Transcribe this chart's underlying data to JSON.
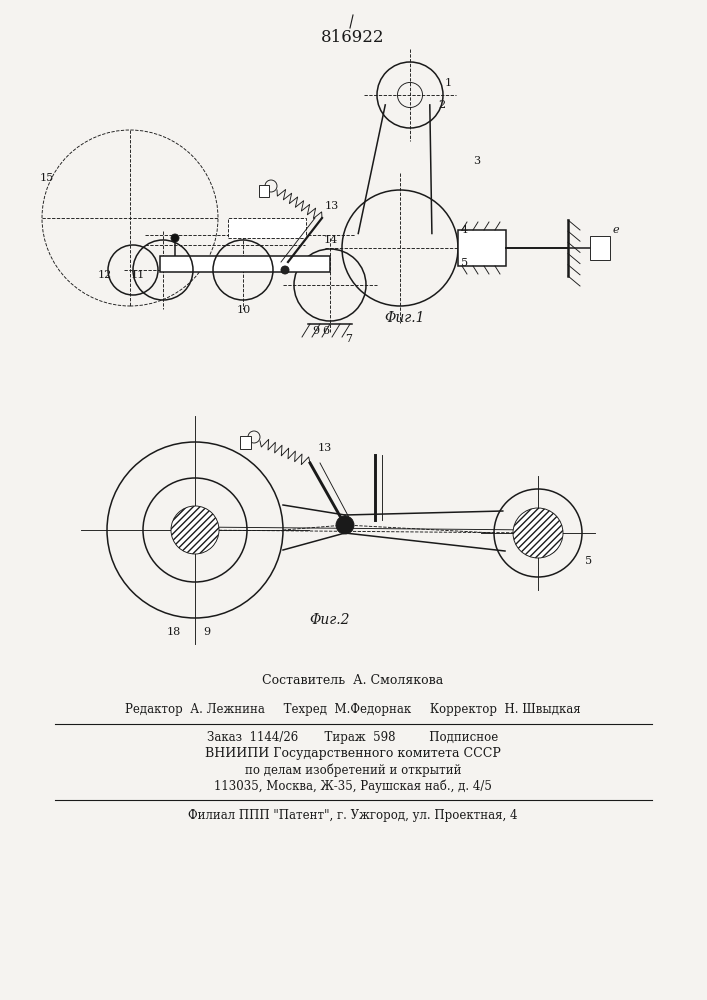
{
  "patent_number": "816922",
  "fig1_label": "Φиг.1",
  "fig2_label": "Φиг.2",
  "bg_color": "#f5f3f0",
  "line_color": "#1a1a1a",
  "footer_lines": [
    "Составитель  А. Смолякова",
    "Редактор  А. Лежнина     Техред  М.Федорнак     Корректор  Н. Швыдкая",
    "Заказ  1144/26       Тираж  598         Подписное",
    "ВНИИПИ Государственного комитета СССР",
    "по делам изобретений и открытий",
    "113035, Москва, Ж-35, Раушская наб., д. 4/5",
    "Филиал ППП \"Патент\", г. Ужгород, ул. Проектная, 4"
  ]
}
